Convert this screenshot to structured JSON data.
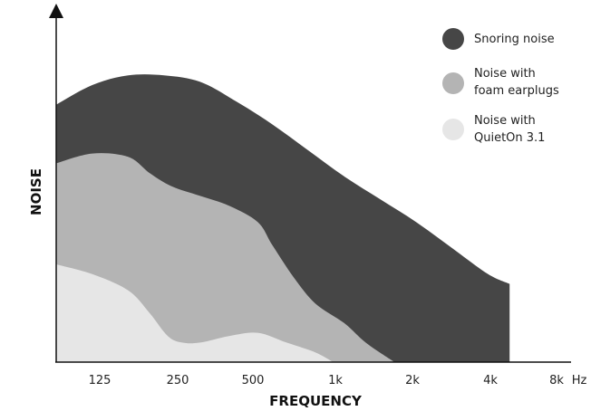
{
  "chart_data": {
    "type": "area",
    "xlabel": "FREQUENCY",
    "ylabel": "NOISE",
    "x_unit": "Hz",
    "categories": [
      "125",
      "250",
      "500",
      "1k",
      "2k",
      "4k",
      "8k"
    ],
    "ylim": [
      0,
      100
    ],
    "grid": false,
    "legend_position": "top-right",
    "series": [
      {
        "name": "Snoring noise",
        "color": "#464646",
        "x": [
          0,
          0.5,
          1,
          1.5,
          2,
          2.5,
          3,
          3.5,
          4,
          4.5,
          5,
          5.5,
          6,
          6.3
        ],
        "values": [
          79,
          85,
          88,
          88,
          86,
          80,
          73,
          65,
          57,
          50,
          43,
          35,
          27,
          24
        ]
      },
      {
        "name": "Noise with foam earplugs",
        "color": "#b4b4b4",
        "x": [
          0,
          0.5,
          1,
          1.3,
          1.6,
          2,
          2.4,
          2.8,
          3,
          3.3,
          3.6,
          4,
          4.3,
          4.7
        ],
        "values": [
          61,
          64,
          63,
          58,
          54,
          51,
          48,
          43,
          36,
          26,
          18,
          12,
          6,
          0
        ]
      },
      {
        "name": "Noise with QuietOn 3.1",
        "color": "#e6e6e6",
        "x": [
          0,
          0.5,
          1,
          1.3,
          1.55,
          1.75,
          2,
          2.4,
          2.8,
          3.2,
          3.6,
          3.85
        ],
        "values": [
          30,
          27,
          22,
          15,
          8,
          6,
          6,
          8,
          9,
          6,
          3,
          0
        ]
      }
    ]
  }
}
